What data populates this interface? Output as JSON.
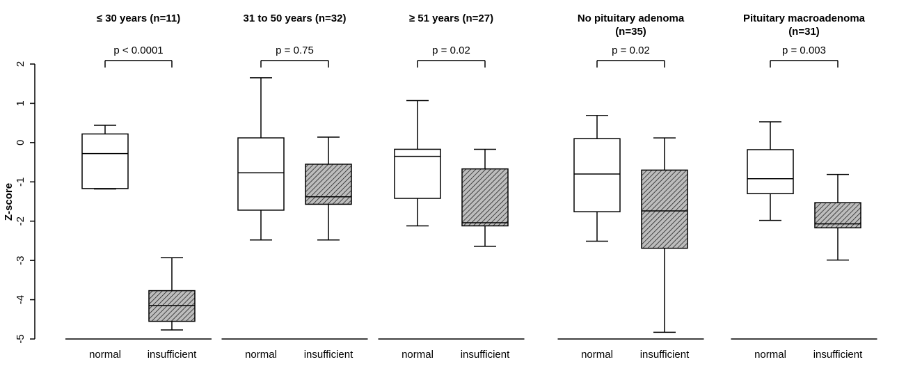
{
  "chart_data": [
    {
      "type": "box",
      "title": [
        "≤ 30 years (n=11)"
      ],
      "annotation": "p < 0.0001",
      "y_label": "Z-score",
      "categories": [
        "normal",
        "insufficient"
      ],
      "patterns": [
        "none",
        "hatch"
      ],
      "boxes": [
        {
          "min": -1.18,
          "q1": -1.17,
          "median": -0.28,
          "q3": 0.22,
          "max": 0.44
        },
        {
          "min": -4.77,
          "q1": -4.55,
          "median": -4.15,
          "q3": -3.77,
          "max": -2.93
        }
      ],
      "ylim": [
        -5,
        2
      ],
      "yticks": [
        2,
        1,
        0,
        -1,
        -2,
        -3,
        -4,
        -5
      ]
    },
    {
      "type": "box",
      "title": [
        "31 to 50 years (n=32)"
      ],
      "annotation": "p = 0.75",
      "categories": [
        "normal",
        "insufficient"
      ],
      "patterns": [
        "none",
        "hatch"
      ],
      "boxes": [
        {
          "min": -2.48,
          "q1": -1.72,
          "median": -0.77,
          "q3": 0.12,
          "max": 1.65
        },
        {
          "min": -2.48,
          "q1": -1.57,
          "median": -1.38,
          "q3": -0.55,
          "max": 0.14
        }
      ],
      "ylim": [
        -5,
        2
      ]
    },
    {
      "type": "box",
      "title": [
        "≥ 51 years (n=27)"
      ],
      "annotation": "p = 0.02",
      "categories": [
        "normal",
        "insufficient"
      ],
      "patterns": [
        "none",
        "hatch"
      ],
      "boxes": [
        {
          "min": -2.12,
          "q1": -1.42,
          "median": -0.35,
          "q3": -0.17,
          "max": 1.07
        },
        {
          "min": -2.64,
          "q1": -2.12,
          "median": -2.04,
          "q3": -0.67,
          "max": -0.17
        }
      ],
      "ylim": [
        -5,
        2
      ]
    },
    {
      "type": "box",
      "title": [
        "No pituitary adenoma",
        "(n=35)"
      ],
      "annotation": "p = 0.02",
      "categories": [
        "normal",
        "insufficient"
      ],
      "patterns": [
        "none",
        "hatch"
      ],
      "boxes": [
        {
          "min": -2.51,
          "q1": -1.76,
          "median": -0.8,
          "q3": 0.1,
          "max": 0.69
        },
        {
          "min": -4.83,
          "q1": -2.69,
          "median": -1.74,
          "q3": -0.7,
          "max": 0.12
        }
      ],
      "ylim": [
        -5,
        2
      ]
    },
    {
      "type": "box",
      "title": [
        "Pituitary macroadenoma",
        "(n=31)"
      ],
      "annotation": "p = 0.003",
      "categories": [
        "normal",
        "insufficient"
      ],
      "patterns": [
        "none",
        "hatch"
      ],
      "boxes": [
        {
          "min": -1.98,
          "q1": -1.3,
          "median": -0.92,
          "q3": -0.18,
          "max": 0.53
        },
        {
          "min": -2.99,
          "q1": -2.17,
          "median": -2.07,
          "q3": -1.53,
          "max": -0.81
        }
      ],
      "ylim": [
        -5,
        2
      ]
    }
  ]
}
